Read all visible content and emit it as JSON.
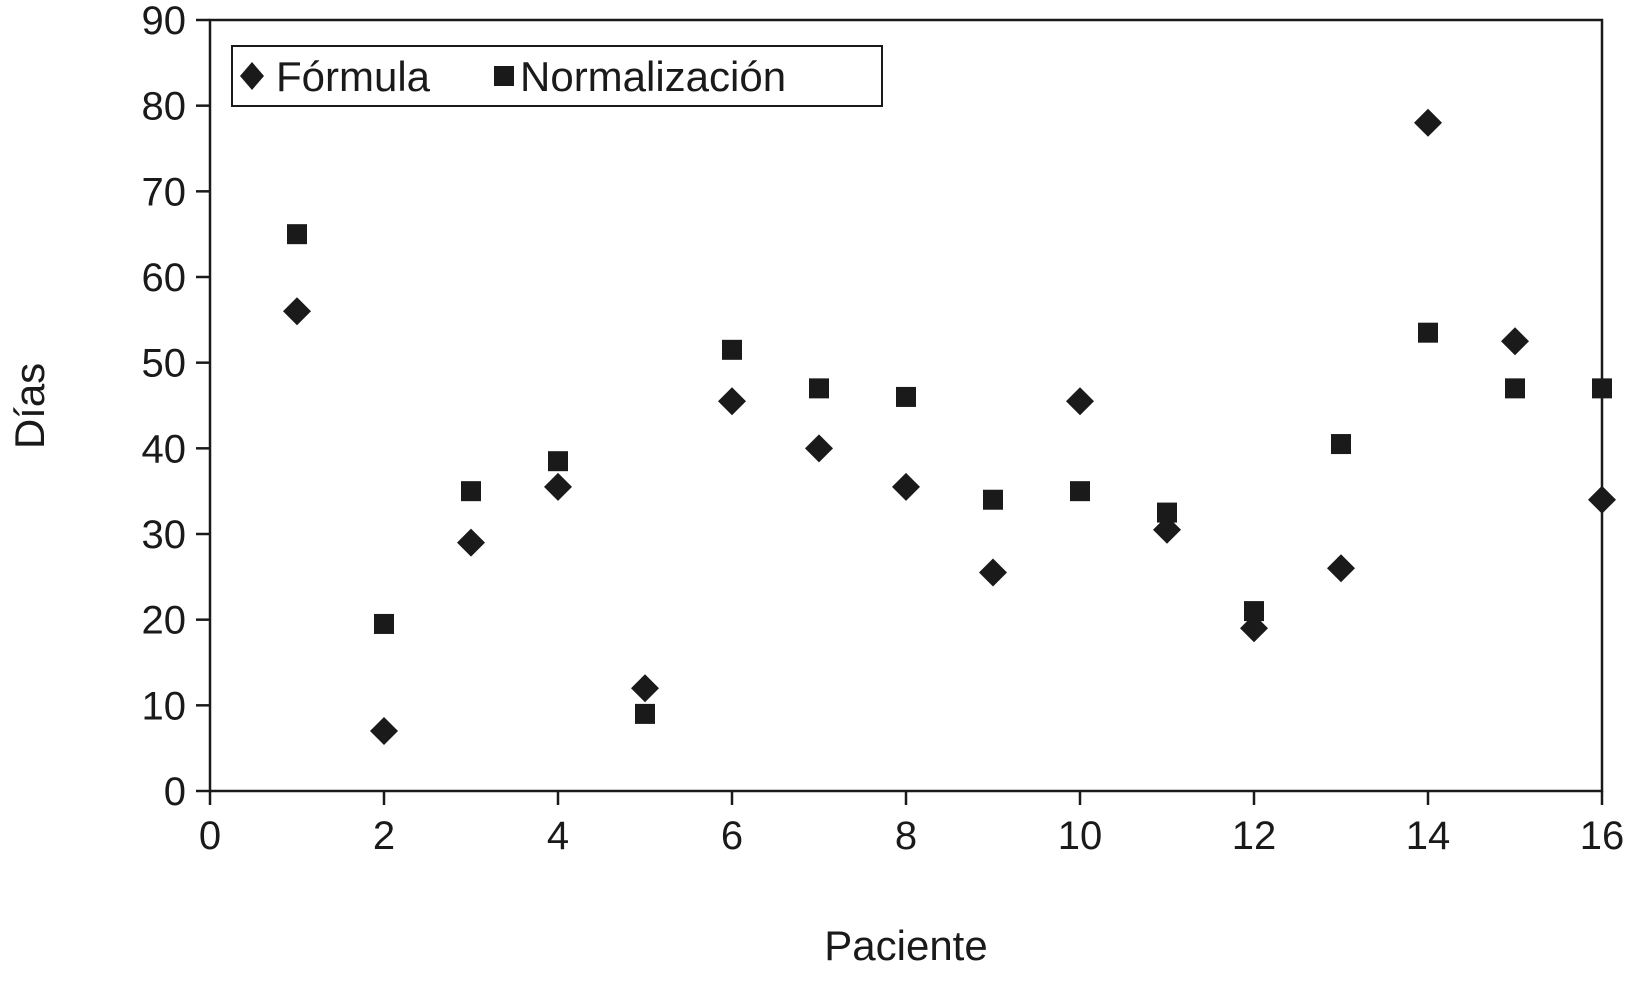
{
  "chart_data": {
    "type": "scatter",
    "xlabel": "Paciente",
    "ylabel": "Días",
    "xlim": [
      0,
      16
    ],
    "ylim": [
      0,
      90
    ],
    "x_ticks": [
      0,
      2,
      4,
      6,
      8,
      10,
      12,
      14,
      16
    ],
    "x_tick_labels": [
      "0",
      "2",
      "4",
      "6",
      "8",
      "10",
      "12",
      "14",
      "16"
    ],
    "y_ticks": [
      0,
      10,
      20,
      30,
      40,
      50,
      60,
      70,
      80,
      90
    ],
    "y_tick_labels": [
      "0",
      "10",
      "20",
      "30",
      "40",
      "50",
      "60",
      "70",
      "80",
      "90"
    ],
    "grid": false,
    "legend_position": "top-left",
    "series": [
      {
        "name": "Fórmula",
        "marker": "diamond",
        "color": "#1a1a1a",
        "points": [
          {
            "x": 1,
            "y": 56
          },
          {
            "x": 2,
            "y": 7
          },
          {
            "x": 3,
            "y": 29
          },
          {
            "x": 4,
            "y": 35.5
          },
          {
            "x": 5,
            "y": 12
          },
          {
            "x": 6,
            "y": 45.5
          },
          {
            "x": 7,
            "y": 40
          },
          {
            "x": 8,
            "y": 35.5
          },
          {
            "x": 9,
            "y": 25.5
          },
          {
            "x": 10,
            "y": 45.5
          },
          {
            "x": 11,
            "y": 30.5
          },
          {
            "x": 12,
            "y": 19
          },
          {
            "x": 13,
            "y": 26
          },
          {
            "x": 14,
            "y": 78
          },
          {
            "x": 15,
            "y": 52.5
          },
          {
            "x": 16,
            "y": 34
          }
        ]
      },
      {
        "name": "Normalización",
        "marker": "square",
        "color": "#1a1a1a",
        "points": [
          {
            "x": 1,
            "y": 65
          },
          {
            "x": 2,
            "y": 19.5
          },
          {
            "x": 3,
            "y": 35
          },
          {
            "x": 4,
            "y": 38.5
          },
          {
            "x": 5,
            "y": 9
          },
          {
            "x": 6,
            "y": 51.5
          },
          {
            "x": 7,
            "y": 47
          },
          {
            "x": 8,
            "y": 46
          },
          {
            "x": 9,
            "y": 34
          },
          {
            "x": 10,
            "y": 35
          },
          {
            "x": 11,
            "y": 32.5
          },
          {
            "x": 12,
            "y": 21
          },
          {
            "x": 13,
            "y": 40.5
          },
          {
            "x": 14,
            "y": 53.5
          },
          {
            "x": 15,
            "y": 47
          },
          {
            "x": 16,
            "y": 47
          }
        ]
      }
    ]
  }
}
